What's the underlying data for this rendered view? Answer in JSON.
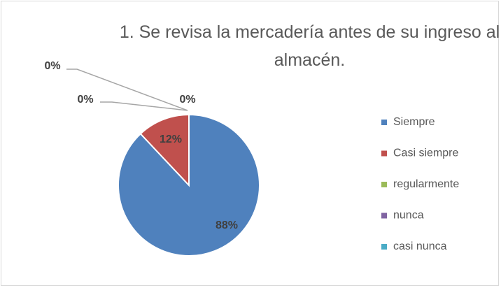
{
  "chart_data": {
    "type": "pie",
    "title": "1. Se revisa la mercadería antes de su ingreso al almacén.",
    "categories": [
      "Siempre",
      "Casi siempre",
      "regularmente",
      "nunca",
      "casi nunca"
    ],
    "values": [
      88,
      12,
      0,
      0,
      0
    ],
    "value_labels": [
      "88%",
      "12%",
      "0%",
      "0%",
      "0%"
    ],
    "colors": [
      "#4f81bd",
      "#c0504d",
      "#9bbb59",
      "#8064a2",
      "#4bacc6"
    ],
    "legend": "right"
  }
}
